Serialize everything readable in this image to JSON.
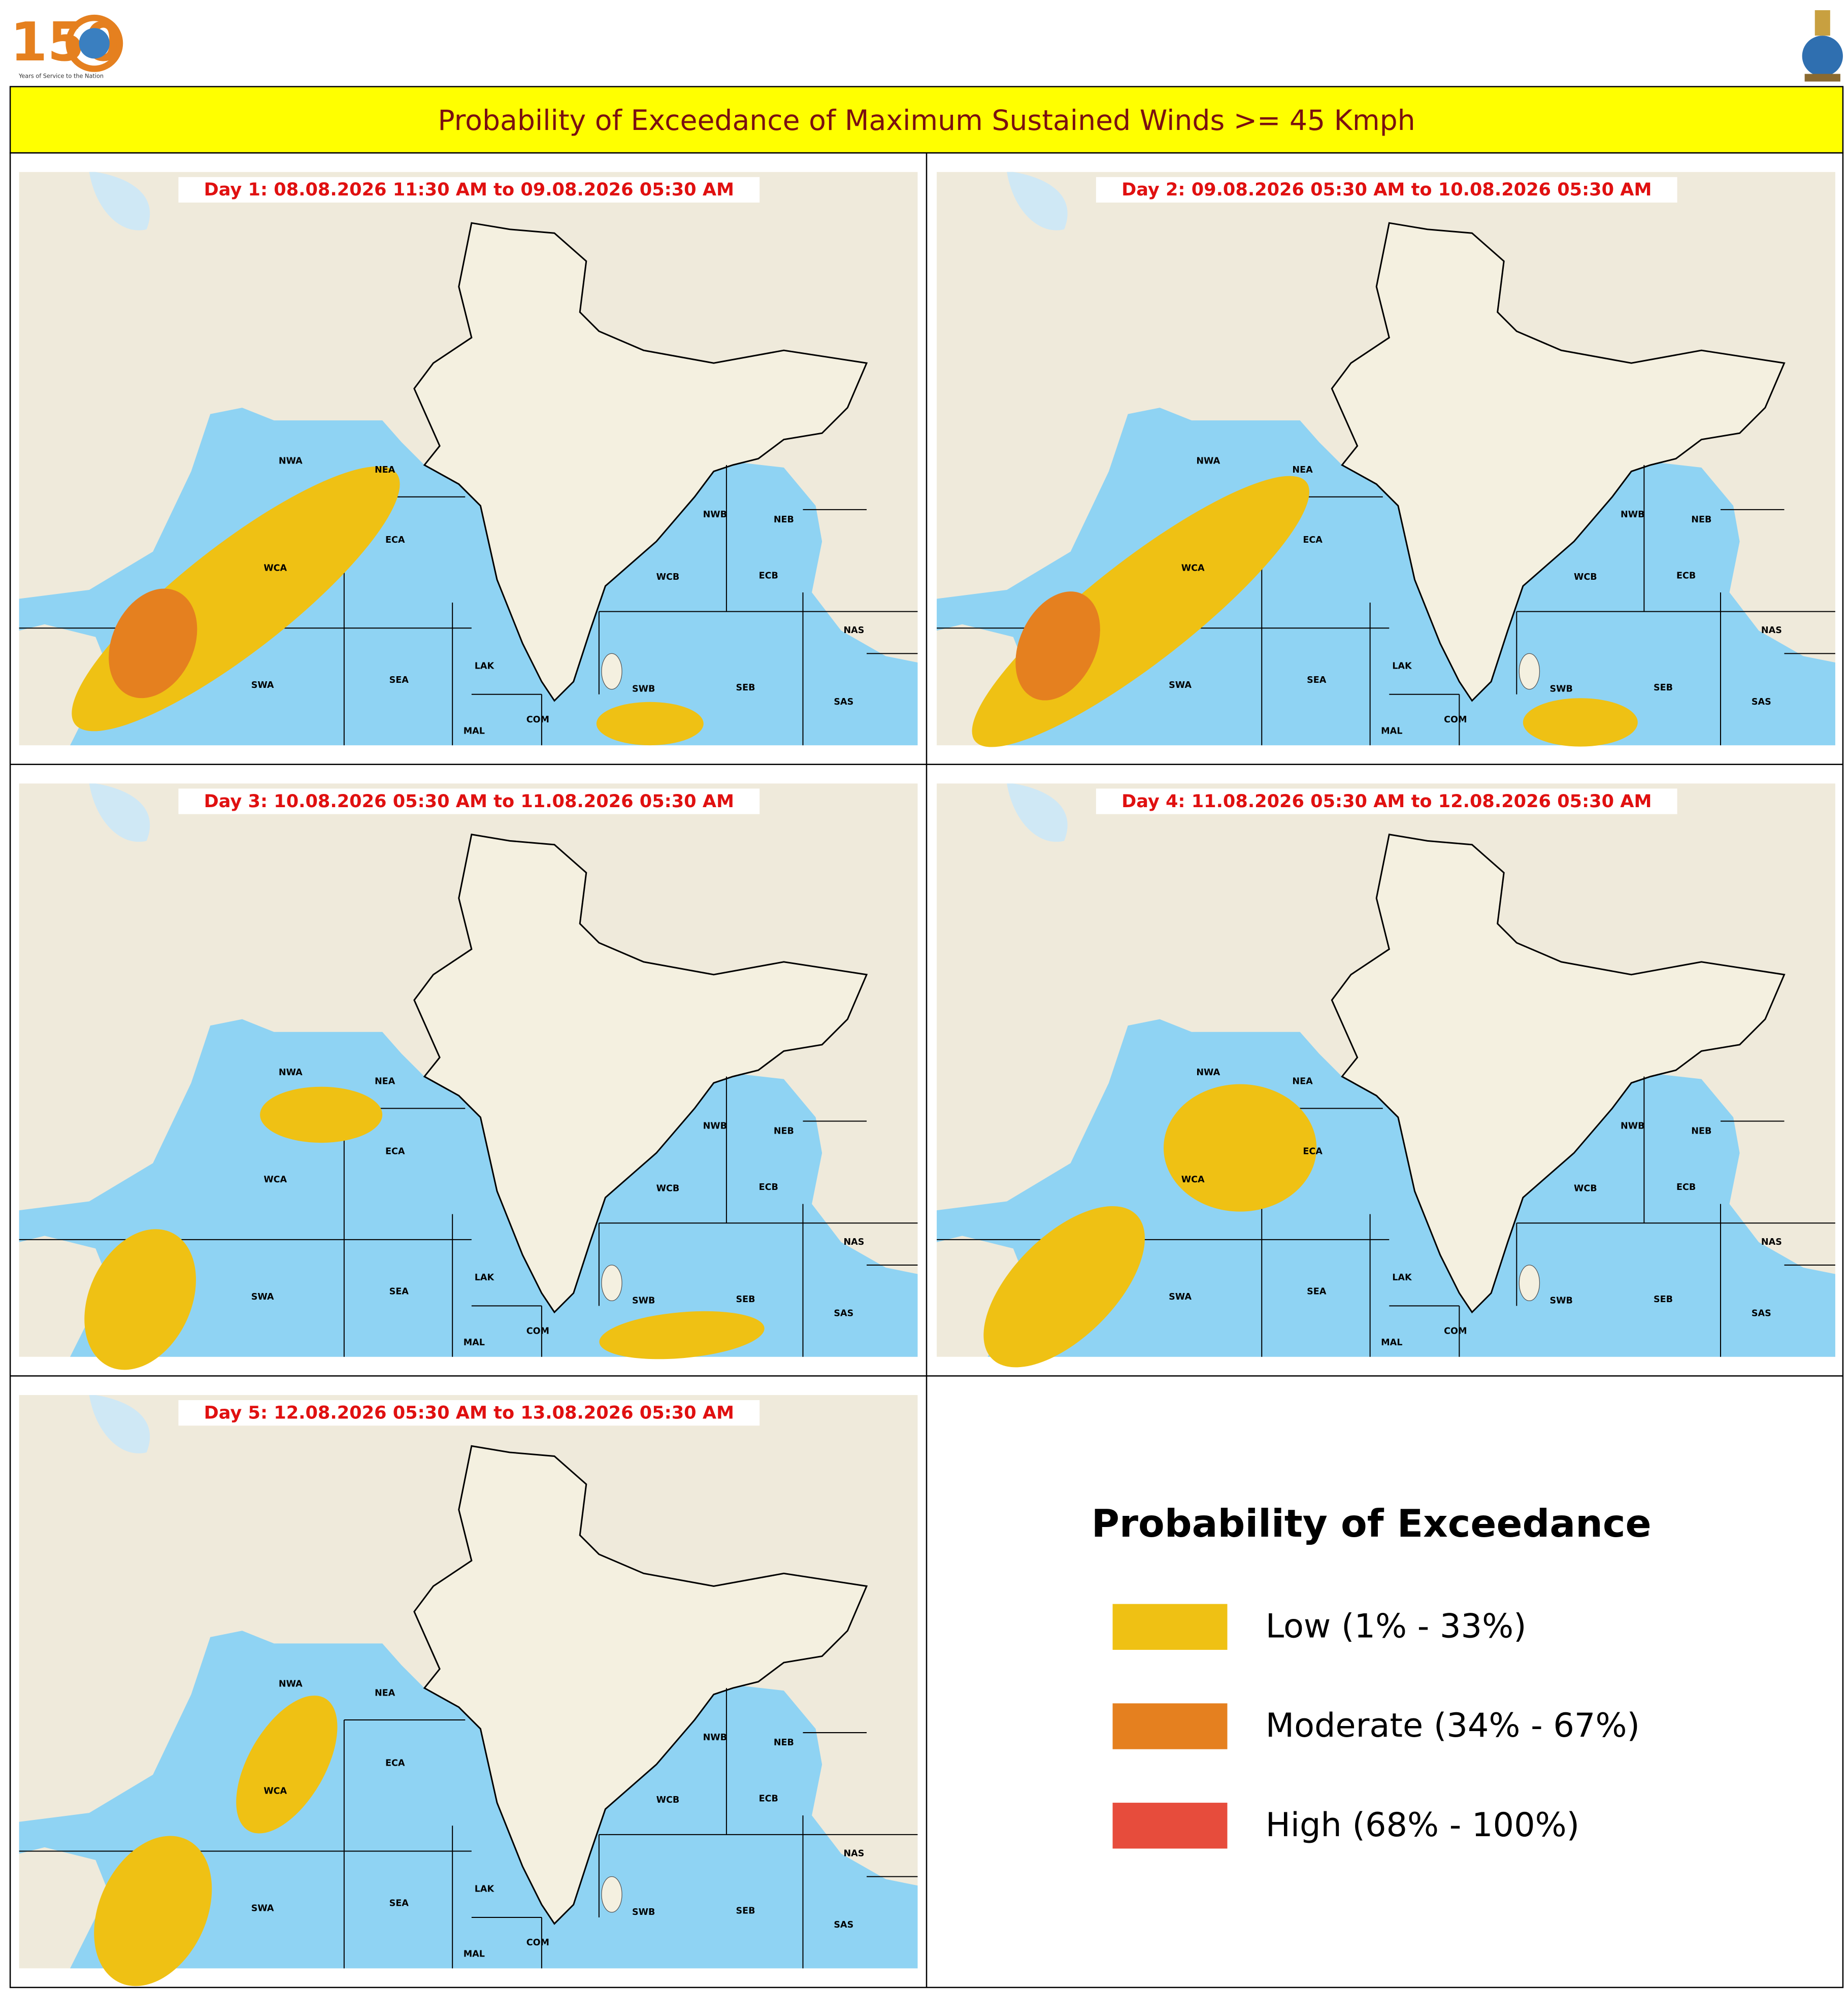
{
  "header": {
    "logo_number": "150",
    "logo_caption": "Years of Service to the Nation",
    "title": "Probability of Exceedance of Maximum Sustained Winds >= 45 Kmph"
  },
  "panels": [
    {
      "label": "Day 1: 08.08.2026 11:30 AM to 09.08.2026 05:30 AM"
    },
    {
      "label": "Day 2: 09.08.2026 05:30 AM to 10.08.2026 05:30 AM"
    },
    {
      "label": "Day 3: 10.08.2026 05:30 AM to 11.08.2026 05:30 AM"
    },
    {
      "label": "Day 4: 11.08.2026 05:30 AM to 12.08.2026 05:30 AM"
    },
    {
      "label": "Day 5: 12.08.2026 05:30 AM to 13.08.2026 05:30 AM"
    }
  ],
  "regions": [
    "NWA",
    "NEA",
    "ECA",
    "WCA",
    "SWA",
    "SEA",
    "LAK",
    "MAL",
    "COM",
    "NWB",
    "NEB",
    "WCB",
    "ECB",
    "SWB",
    "SEB",
    "NAS",
    "SAS"
  ],
  "legend": {
    "title": "Probability of Exceedance",
    "items": [
      {
        "label": "Low (1% - 33%)",
        "color": "#efc114"
      },
      {
        "label": "Moderate (34% - 67%)",
        "color": "#e5801f"
      },
      {
        "label": "High (68% - 100%)",
        "color": "#e74c3c"
      }
    ]
  }
}
